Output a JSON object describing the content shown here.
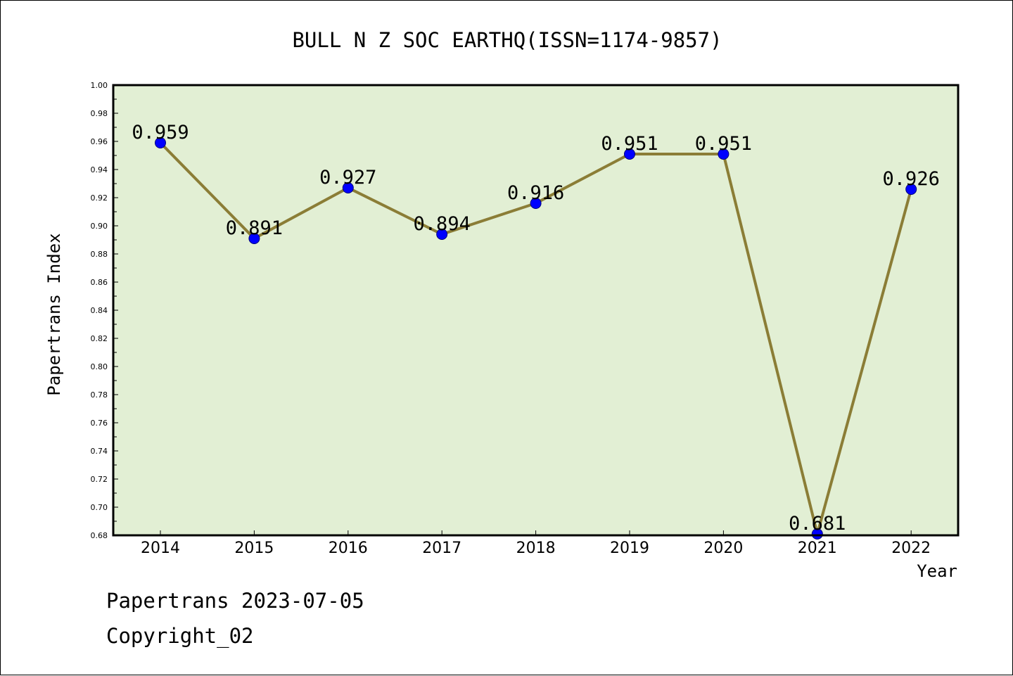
{
  "chart_data": {
    "type": "line",
    "title": "BULL N Z SOC EARTHQ(ISSN=1174-9857)",
    "xlabel": "Year",
    "ylabel": "Papertrans Index",
    "categories": [
      "2014",
      "2015",
      "2016",
      "2017",
      "2018",
      "2019",
      "2020",
      "2021",
      "2022"
    ],
    "values": [
      0.959,
      0.891,
      0.927,
      0.894,
      0.916,
      0.951,
      0.951,
      0.681,
      0.926
    ],
    "data_labels": [
      "0.959",
      "0.891",
      "0.927",
      "0.894",
      "0.916",
      "0.951",
      "0.951",
      "0.681",
      "0.926"
    ],
    "ylim": [
      0.68,
      1.0
    ],
    "yticks": [
      "0.68",
      "0.70",
      "0.72",
      "0.74",
      "0.76",
      "0.78",
      "0.80",
      "0.82",
      "0.84",
      "0.86",
      "0.88",
      "0.90",
      "0.92",
      "0.94",
      "0.96",
      "0.98",
      "1.00"
    ],
    "grid": false,
    "legend": "none",
    "colors": {
      "plot_background": "#e2efd4",
      "line": "#8b7d36",
      "marker": "#0000ff",
      "axis": "#000000"
    }
  },
  "footer": {
    "line1": "Papertrans 2023-07-05",
    "line2": "Copyright_02"
  }
}
